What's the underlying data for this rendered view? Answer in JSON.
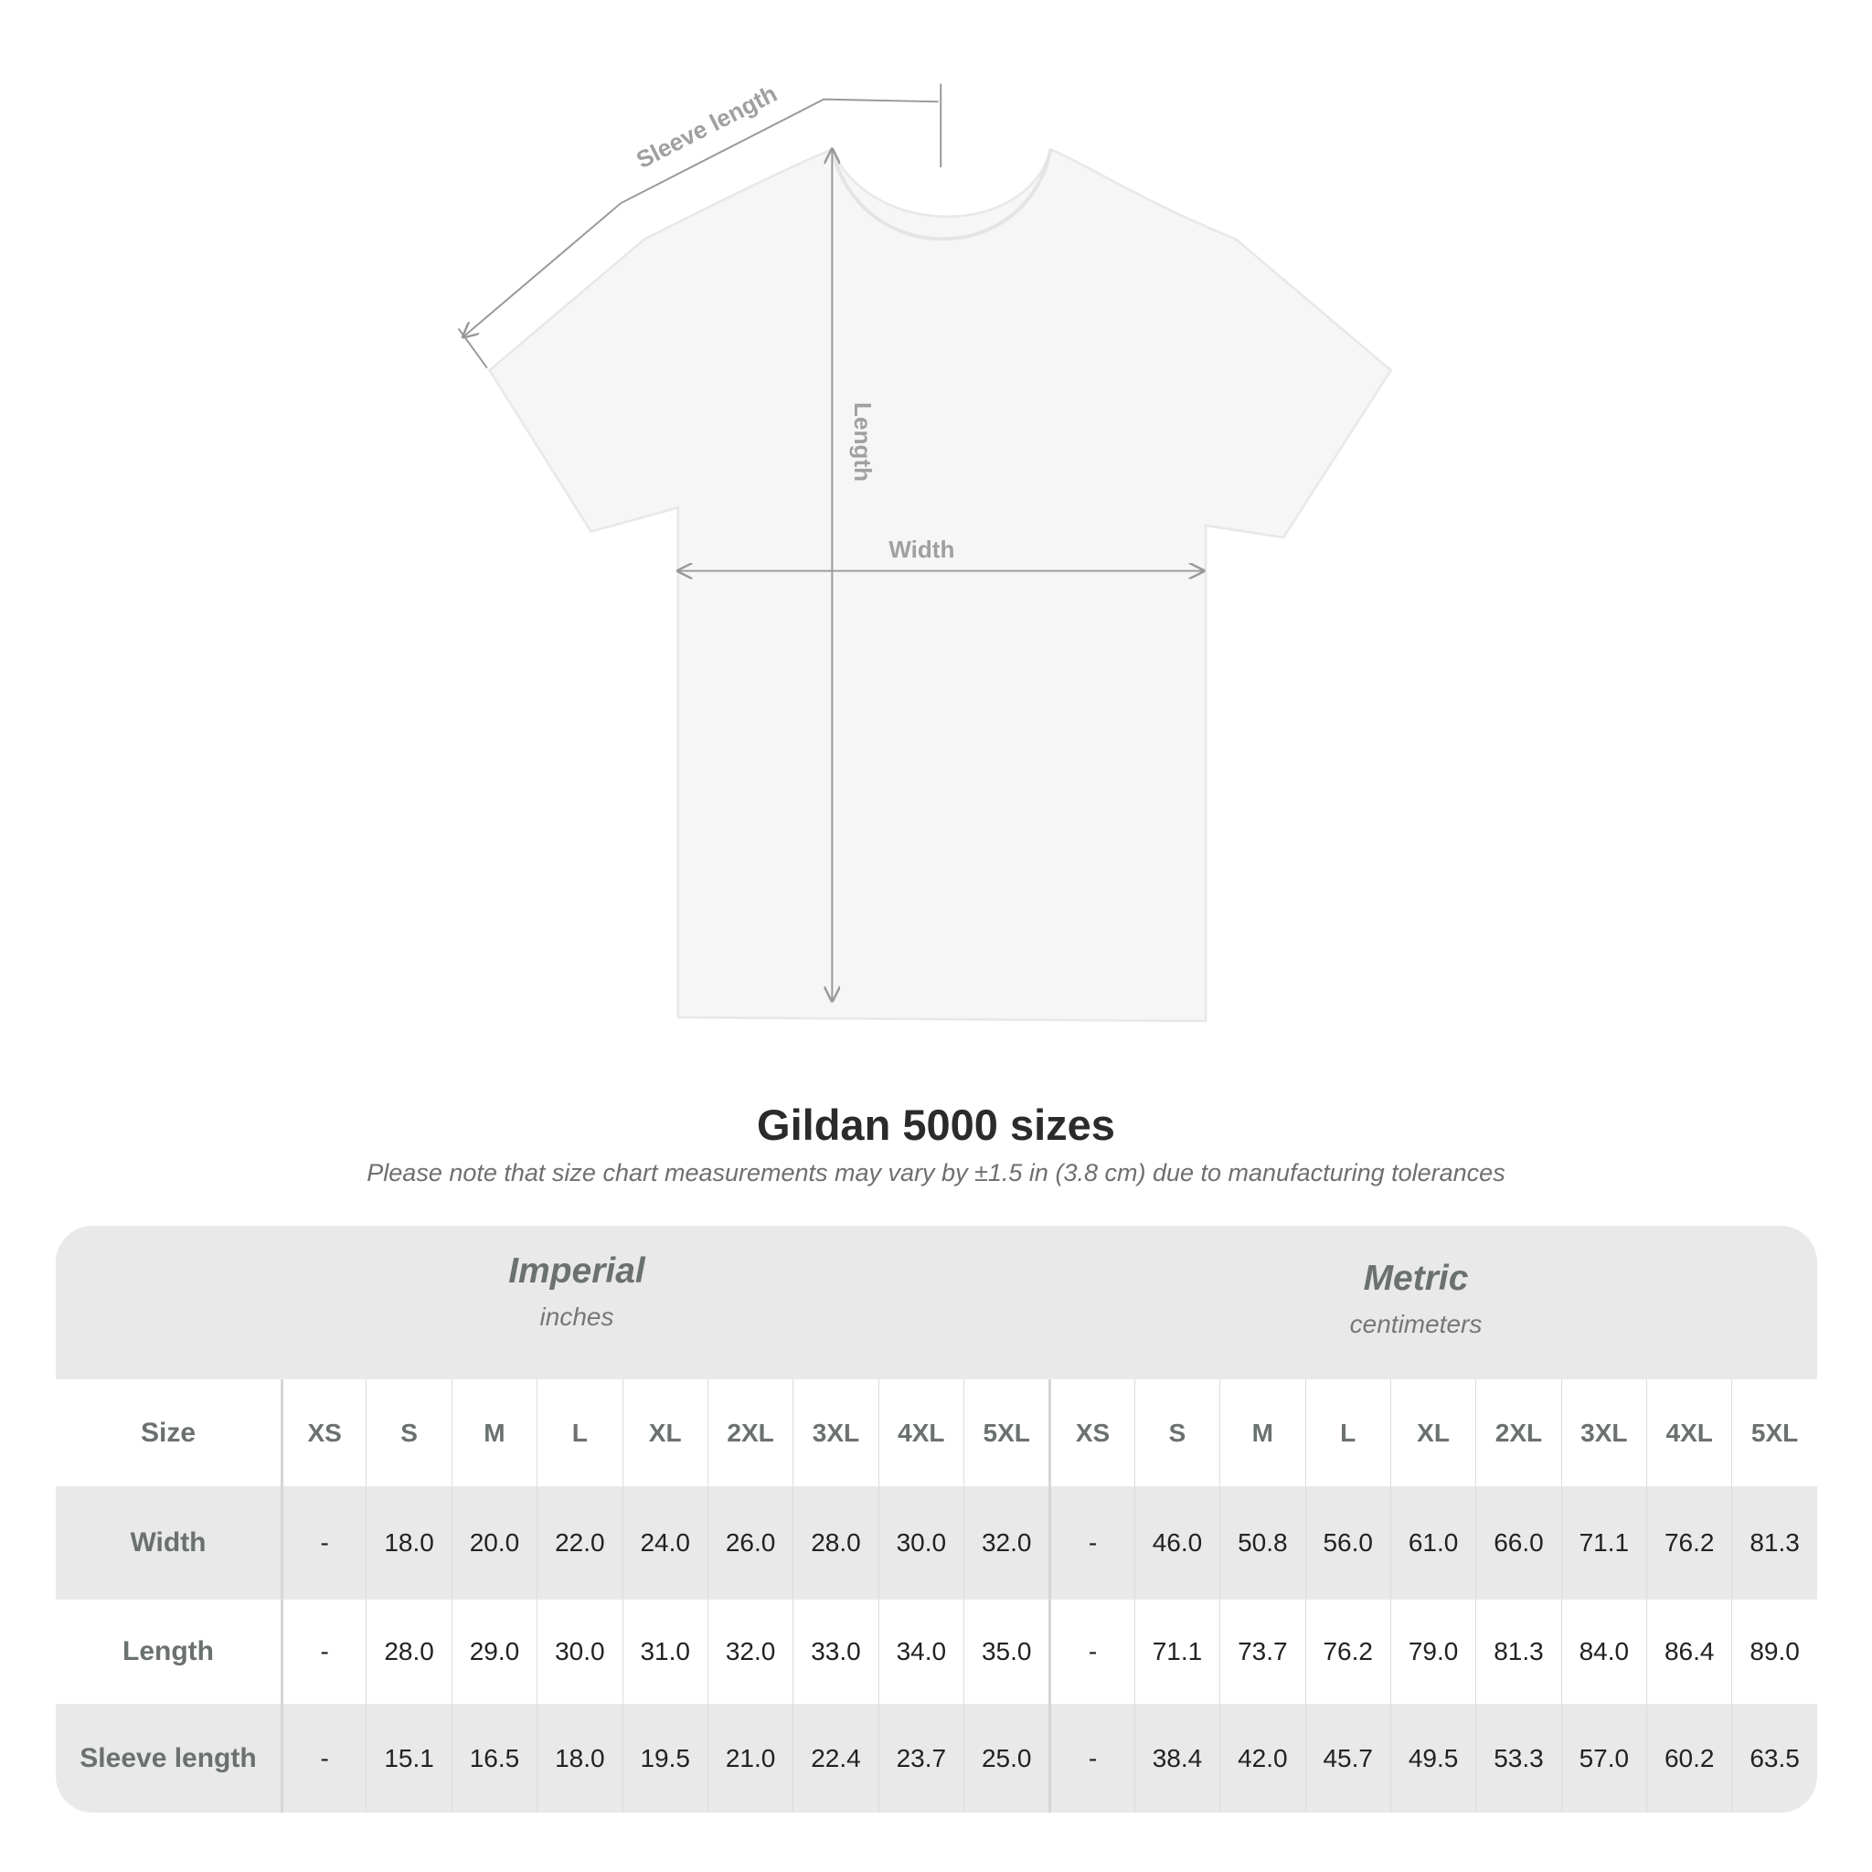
{
  "diagram": {
    "sleeve_label": "Sleeve length",
    "length_label": "Length",
    "width_label": "Width"
  },
  "title": "Gildan 5000 sizes",
  "subtitle": "Please note that size chart measurements may vary by ±1.5 in (3.8 cm) due to manufacturing tolerances",
  "table": {
    "imperial": {
      "title": "Imperial",
      "unit": "inches"
    },
    "metric": {
      "title": "Metric",
      "unit": "centimeters"
    },
    "size_label": "Size",
    "sizes": [
      "XS",
      "S",
      "M",
      "L",
      "XL",
      "2XL",
      "3XL",
      "4XL",
      "5XL"
    ],
    "rows": [
      {
        "label": "Width",
        "imperial": [
          "-",
          "18.0",
          "20.0",
          "22.0",
          "24.0",
          "26.0",
          "28.0",
          "30.0",
          "32.0"
        ],
        "metric": [
          "-",
          "46.0",
          "50.8",
          "56.0",
          "61.0",
          "66.0",
          "71.1",
          "76.2",
          "81.3"
        ]
      },
      {
        "label": "Length",
        "imperial": [
          "-",
          "28.0",
          "29.0",
          "30.0",
          "31.0",
          "32.0",
          "33.0",
          "34.0",
          "35.0"
        ],
        "metric": [
          "-",
          "71.1",
          "73.7",
          "76.2",
          "79.0",
          "81.3",
          "84.0",
          "86.4",
          "89.0"
        ]
      },
      {
        "label": "Sleeve length",
        "imperial": [
          "-",
          "15.1",
          "16.5",
          "18.0",
          "19.5",
          "21.0",
          "22.4",
          "23.7",
          "25.0"
        ],
        "metric": [
          "-",
          "38.4",
          "42.0",
          "45.7",
          "49.5",
          "53.3",
          "57.0",
          "60.2",
          "63.5"
        ]
      }
    ]
  },
  "colors": {
    "band": "#e9e9e9",
    "header_text": "#6b7070",
    "measure_line": "#999999"
  }
}
